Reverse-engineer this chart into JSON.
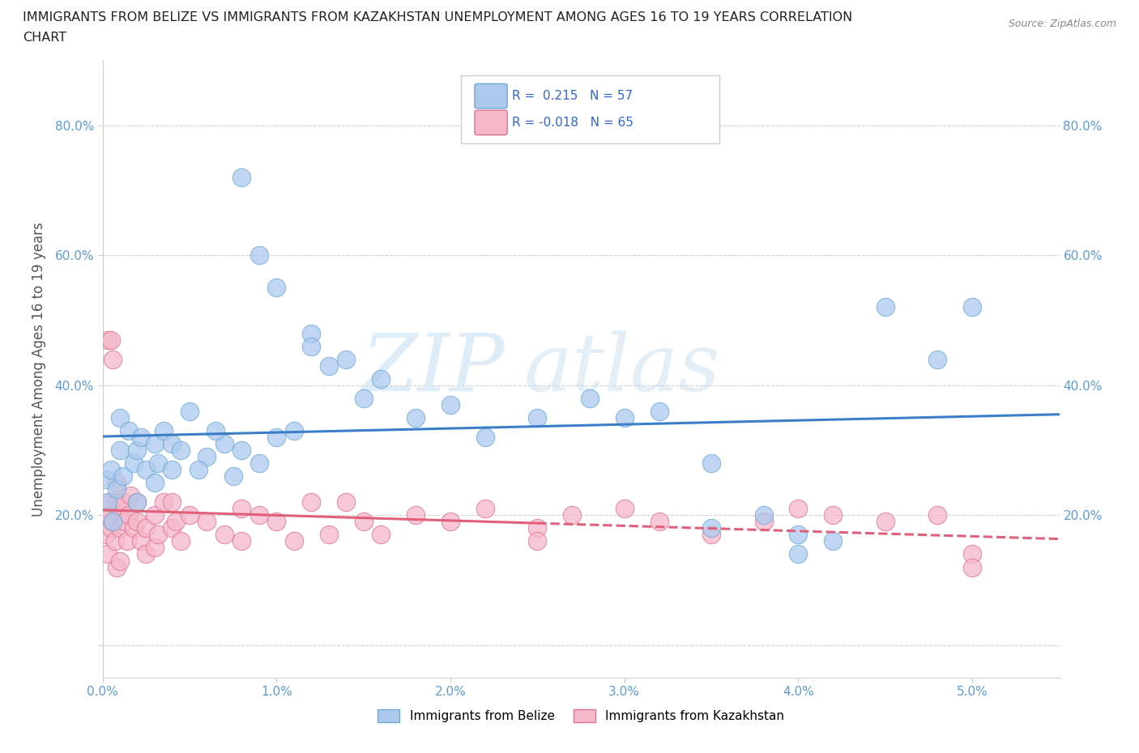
{
  "title_line1": "IMMIGRANTS FROM BELIZE VS IMMIGRANTS FROM KAZAKHSTAN UNEMPLOYMENT AMONG AGES 16 TO 19 YEARS CORRELATION",
  "title_line2": "CHART",
  "source_text": "Source: ZipAtlas.com",
  "ylabel": "Unemployment Among Ages 16 to 19 years",
  "xlim_low": 0.0,
  "xlim_high": 0.055,
  "ylim_low": -0.05,
  "ylim_high": 0.9,
  "ytick_vals": [
    0.0,
    0.2,
    0.4,
    0.6,
    0.8
  ],
  "ytick_labels": [
    "",
    "20.0%",
    "40.0%",
    "60.0%",
    "80.0%"
  ],
  "xtick_vals": [
    0.0,
    0.01,
    0.02,
    0.03,
    0.04,
    0.05
  ],
  "xtick_labels": [
    "0.0%",
    "1.0%",
    "2.0%",
    "3.0%",
    "4.0%",
    "5.0%"
  ],
  "belize_color": "#adc9ee",
  "belize_edge_color": "#6aaad4",
  "kazakh_color": "#f5b8cb",
  "kazakh_edge_color": "#e07090",
  "belize_line_color": "#3b7ec8",
  "kazakh_line_color": "#e0607a",
  "belize_R": 0.215,
  "belize_N": 57,
  "kazakh_R": -0.018,
  "kazakh_N": 65,
  "legend_label_belize": "Immigrants from Belize",
  "legend_label_kazakh": "Immigrants from Kazakhstan",
  "watermark_zip": "ZIP",
  "watermark_atlas": "atlas",
  "grid_color": "#cccccc",
  "background_color": "#ffffff",
  "tick_color": "#5b9bd5",
  "right_tick_color": "#5b9bd5"
}
